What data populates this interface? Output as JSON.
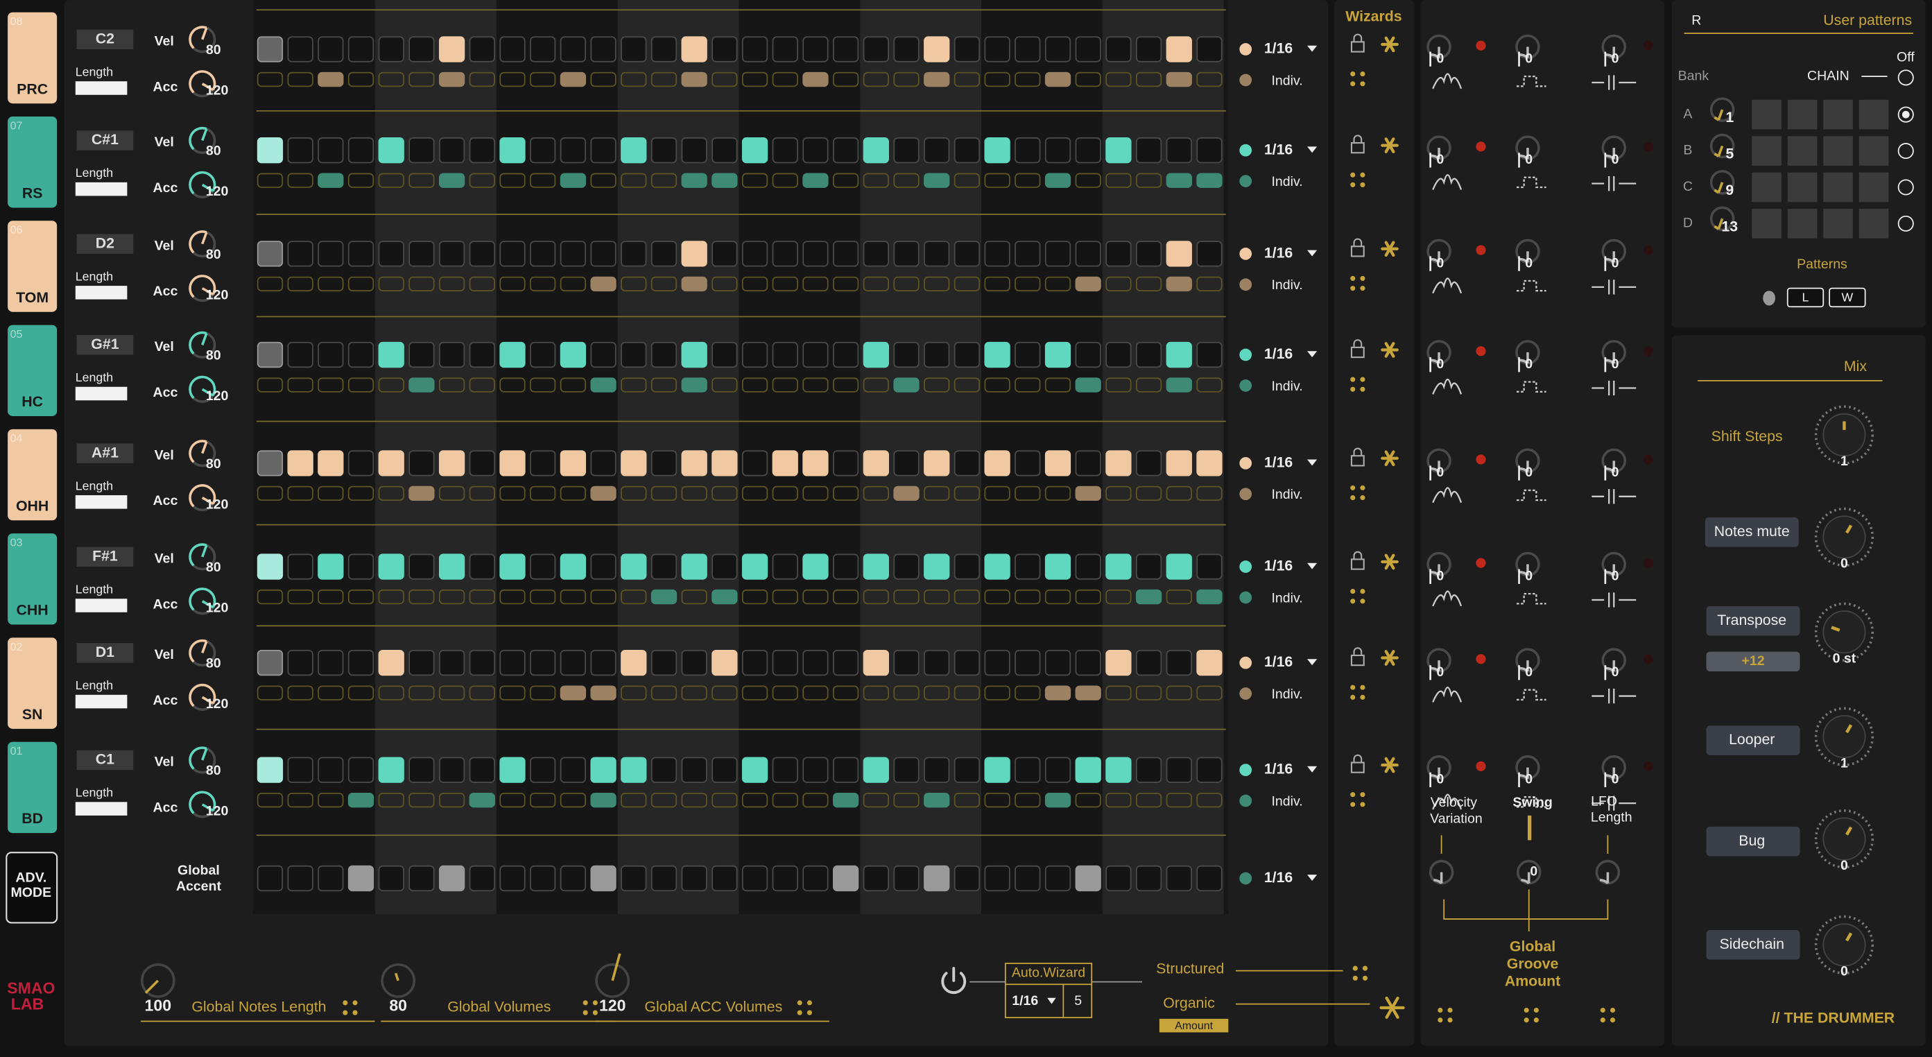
{
  "sidebar": {
    "adv_mode": [
      "ADV.",
      "MODE"
    ],
    "logo": [
      "SMAO",
      "LAB"
    ]
  },
  "labels": {
    "vel": "Vel",
    "acc": "Acc",
    "length": "Length",
    "rate": "1/16",
    "mode": "Indiv.",
    "global_accent": [
      "Global",
      "Accent"
    ]
  },
  "tracks": [
    {
      "slot": "08",
      "name": "PRC",
      "note": "C2",
      "vel": "80",
      "acc": "120",
      "color": "#f0c9a2",
      "steps": "g.....p.......p.......p.......p.",
      "accents": "..b...b...b...b...b...b...b...b."
    },
    {
      "slot": "07",
      "name": "RS",
      "note": "C#1",
      "vel": "80",
      "acc": "120",
      "color": "#5fd8bf",
      "steps": "l...t...t...t...t...t...t...t...",
      "accents": "..d...d...d...dd..d...d...d...dd"
    },
    {
      "slot": "06",
      "name": "TOM",
      "note": "D2",
      "vel": "80",
      "acc": "120",
      "color": "#f0c9a2",
      "steps": "g.............p...............p.",
      "accents": "...........b..b............b..b."
    },
    {
      "slot": "05",
      "name": "HC",
      "note": "G#1",
      "vel": "80",
      "acc": "120",
      "color": "#5fd8bf",
      "steps": "g...t...t.t...t.....t...t.t...t.",
      "accents": ".....d.....d..d......d.....d..d."
    },
    {
      "slot": "04",
      "name": "OHH",
      "note": "A#1",
      "vel": "80",
      "acc": "120",
      "color": "#f0c9a2",
      "steps": "gpp.p.p.p.p.p.pp.pp.p.p.p.p.p.pp",
      "accents": ".....b.....b.........b.....b...."
    },
    {
      "slot": "03",
      "name": "CHH",
      "note": "F#1",
      "vel": "80",
      "acc": "120",
      "color": "#5fd8bf",
      "steps": "l.t.t.t.t.t.t.t.t.t.t.t.t.t.t.t.",
      "accents": ".............d.d.............d.d"
    },
    {
      "slot": "02",
      "name": "SN",
      "note": "D1",
      "vel": "80",
      "acc": "120",
      "color": "#f0c9a2",
      "steps": "g...p.......p..p....p.......p..p",
      "accents": "..........bb..............bb...."
    },
    {
      "slot": "01",
      "name": "BD",
      "note": "C1",
      "vel": "80",
      "acc": "120",
      "color": "#5fd8bf",
      "steps": "l...t...t..tt...t...t...t..tt...",
      "accents": "...d...d...d.......d..d...d....."
    }
  ],
  "global_accent_steps": "...g..g....g.......g..g....g....",
  "wizards": {
    "title": "Wizards"
  },
  "groove": {
    "knob_value": "0",
    "velocity_variation": [
      "Velocity",
      "Variation"
    ],
    "swing": "Swing",
    "lfo_length": [
      "LFO",
      "Length"
    ],
    "global_groove_amount": [
      "Global",
      "Groove",
      "Amount"
    ]
  },
  "user_patterns": {
    "r": "R",
    "title": "User patterns",
    "off": "Off",
    "bank": "Bank",
    "chain": "CHAIN",
    "rows": [
      {
        "letter": "A",
        "number": "1"
      },
      {
        "letter": "B",
        "number": "5"
      },
      {
        "letter": "C",
        "number": "9"
      },
      {
        "letter": "D",
        "number": "13"
      }
    ],
    "patterns": "Patterns",
    "buttons": [
      "L",
      "W"
    ]
  },
  "mix": {
    "title": "Mix",
    "items": [
      {
        "label": "Shift Steps",
        "value": "1"
      },
      {
        "label": "Notes mute",
        "value": "0"
      },
      {
        "label": "Transpose",
        "value": "0 st",
        "sub": "+12"
      },
      {
        "label": "Looper",
        "value": "1"
      },
      {
        "label": "Bug",
        "value": "0"
      },
      {
        "label": "Sidechain",
        "value": "0"
      }
    ],
    "footer": "// THE  DRUMMER"
  },
  "bottom": {
    "knobs": [
      {
        "value": "100",
        "label": "Global Notes Length"
      },
      {
        "value": "80",
        "label": "Global Volumes"
      },
      {
        "value": "120",
        "label": "Global ACC Volumes"
      }
    ],
    "auto_wizard": "Auto.Wizard",
    "rate": "1/16",
    "count": "5",
    "structured": "Structured",
    "organic": "Organic",
    "amount": "Amount"
  }
}
